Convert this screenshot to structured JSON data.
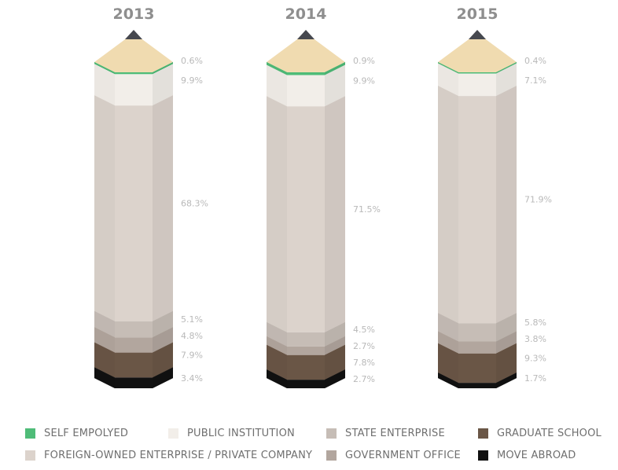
{
  "chart_data": {
    "type": "bar",
    "subtype": "stacked-100-percent",
    "orientation": "vertical",
    "categories": [
      "2013",
      "2014",
      "2015"
    ],
    "series": [
      {
        "name": "SELF EMPOLYED",
        "color": "#4fbc78",
        "values": [
          0.6,
          0.9,
          0.4
        ],
        "labels": [
          "0.6%",
          "0.9%",
          "0.4%"
        ]
      },
      {
        "name": "PUBLIC INSTITUTION",
        "color": "#f2eee9",
        "values": [
          9.9,
          9.9,
          7.1
        ],
        "labels": [
          "9.9%",
          "9.9%",
          "7.1%"
        ]
      },
      {
        "name": "FOREIGN-OWNED ENTERPRISE / PRIVATE COMPANY",
        "color": "#dcd3cc",
        "values": [
          68.3,
          71.5,
          71.9
        ],
        "labels": [
          "68.3%",
          "71.5%",
          "71.9%"
        ]
      },
      {
        "name": "STATE ENTERPRISE",
        "color": "#c6bdb6",
        "values": [
          5.1,
          4.5,
          5.8
        ],
        "labels": [
          "5.1%",
          "4.5%",
          "5.8%"
        ]
      },
      {
        "name": "GOVERNMENT OFFICE",
        "color": "#b2a69e",
        "values": [
          4.8,
          2.7,
          3.8
        ],
        "labels": [
          "4.8%",
          "2.7%",
          "3.8%"
        ]
      },
      {
        "name": "GRADUATE SCHOOL",
        "color": "#6a5646",
        "values": [
          7.9,
          7.8,
          9.3
        ],
        "labels": [
          "7.9%",
          "7.8%",
          "9.3%"
        ]
      },
      {
        "name": "MOVE ABROAD",
        "color": "#111111",
        "values": [
          3.4,
          2.7,
          1.7
        ],
        "labels": [
          "3.4%",
          "2.7%",
          "1.7%"
        ]
      }
    ],
    "stack_order": "top-to-bottom",
    "legend_position": "bottom",
    "style": {
      "pencil_tip_color": "#f0dbb0",
      "pencil_lead_color": "#46484f",
      "year_label_color": "#8e8e8e",
      "value_label_color": "#b9b9b9",
      "legend_text_color": "#6f6f6f"
    }
  }
}
